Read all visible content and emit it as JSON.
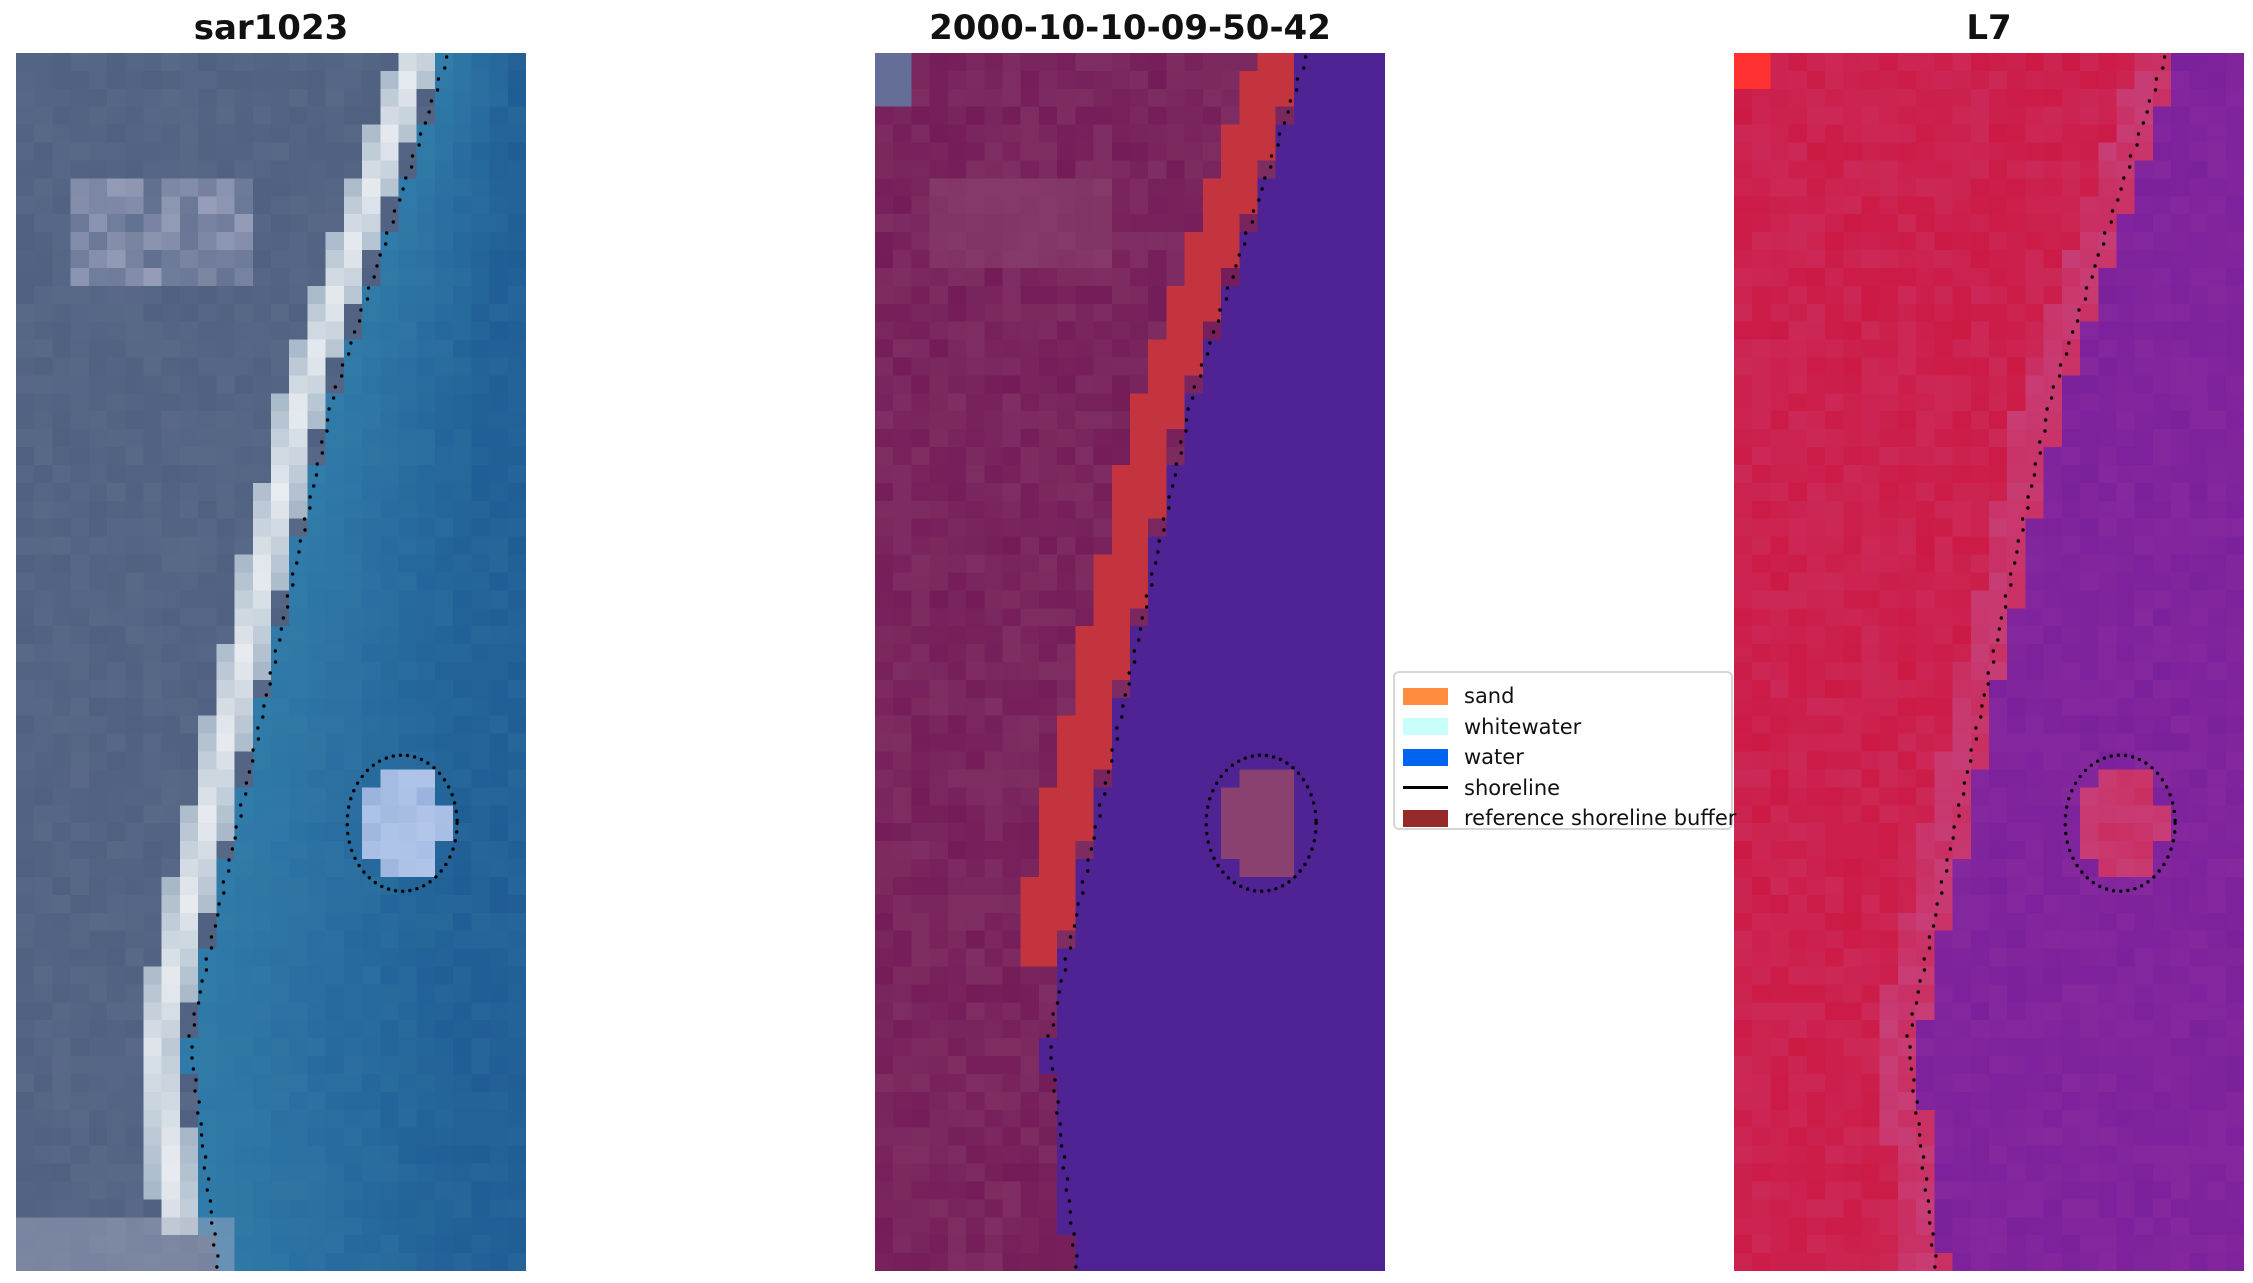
{
  "panels": [
    {
      "title": "sar1023",
      "image": "rgb-satellite-image"
    },
    {
      "title": "2000-10-10-09-50-42",
      "image": "classified-image"
    },
    {
      "title": "L7",
      "image": "mndwi-index-image"
    }
  ],
  "legend": {
    "items": [
      {
        "label": "sand",
        "color": "#ff8c3f",
        "type": "patch"
      },
      {
        "label": "whitewater",
        "color": "#c8fffa",
        "type": "patch"
      },
      {
        "label": "water",
        "color": "#0064f0",
        "type": "patch"
      },
      {
        "label": "shoreline",
        "color": "#000000",
        "type": "line"
      },
      {
        "label": "reference shoreline buffer",
        "color": "#962a2a",
        "type": "patch"
      }
    ]
  },
  "colors": {
    "rgb_water_shallow": "#2e79a8",
    "rgb_water_deep": "#1f5d94",
    "rgb_land": "#4f6081",
    "rgb_beach": "#e9edf1",
    "class_land": "#741c58",
    "class_sand": "#c4343e",
    "class_water": "#4f2393",
    "class_bright": "#8a416f",
    "index_land": "#cc1a45",
    "index_water": "#7c219c",
    "index_edge": "#c64d8c",
    "index_corner": "#ff3030"
  }
}
